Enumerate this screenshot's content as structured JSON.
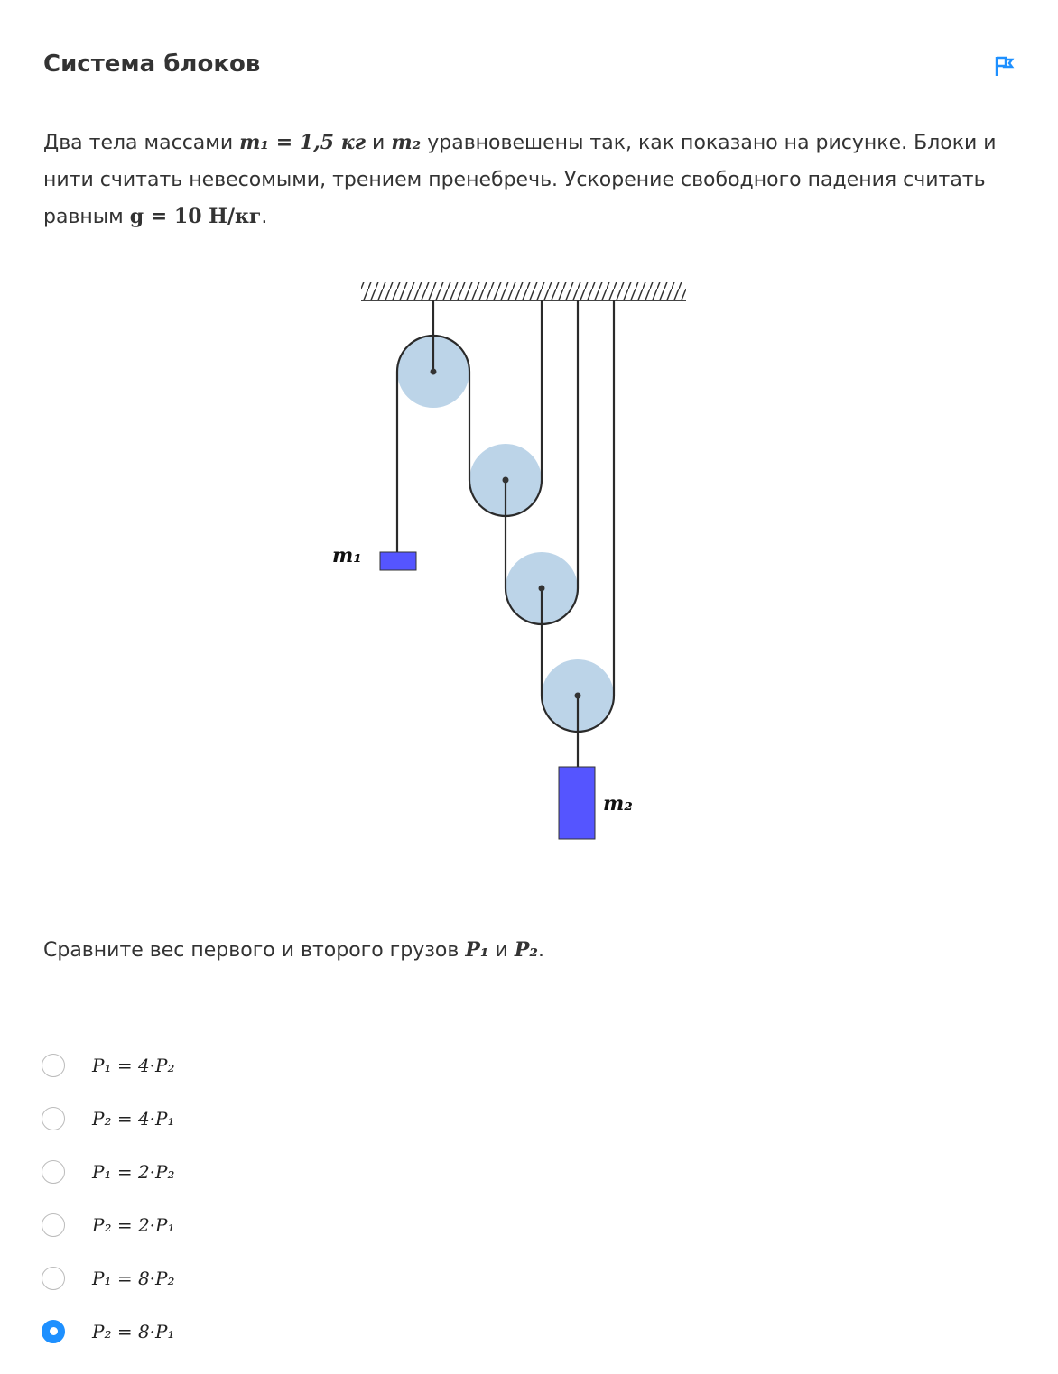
{
  "title": "Система блоков",
  "flag_icon": "flag-icon",
  "problem": {
    "t1": "Два тела массами ",
    "m1": "m₁ = 1,5 кг",
    "t2": " и ",
    "m2": "m₂",
    "t3": " уравновешены так, как показано на рисунке. Блоки и нити считать невесомыми, трением пренебречь. Ускорение свободного падения считать равным ",
    "g": "g = 10 Н/кг",
    "t4": "."
  },
  "figure": {
    "label_m1": "m₁",
    "label_m2": "m₂",
    "pulley_color": "#bcd4e8",
    "mass_color": "#5555ff"
  },
  "question": {
    "t1": "Сравните вес первого и второго грузов ",
    "p1": "P₁",
    "t2": " и ",
    "p2": "P₂",
    "t3": "."
  },
  "options": [
    {
      "label": "P₁ = 4·P₂",
      "selected": false
    },
    {
      "label": "P₂ = 4·P₁",
      "selected": false
    },
    {
      "label": "P₁ = 2·P₂",
      "selected": false
    },
    {
      "label": "P₂ = 2·P₁",
      "selected": false
    },
    {
      "label": "P₁ = 8·P₂",
      "selected": false
    },
    {
      "label": "P₂ = 8·P₁",
      "selected": true
    }
  ],
  "accent": "#1e90ff"
}
